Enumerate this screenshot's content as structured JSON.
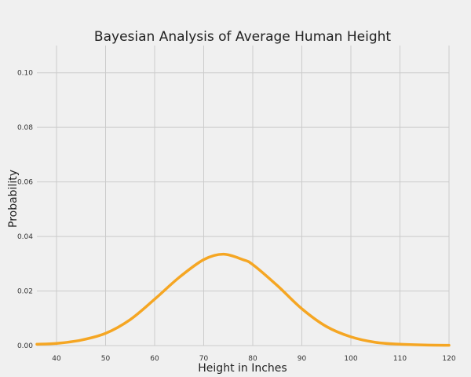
{
  "chart_data": {
    "type": "line",
    "title": "Bayesian Analysis of Average Human Height",
    "xlabel": "Height in Inches",
    "ylabel": "Probability",
    "xlim": [
      36,
      120
    ],
    "ylim": [
      0,
      0.11
    ],
    "xticks": [
      40,
      50,
      60,
      70,
      80,
      90,
      100,
      110,
      120
    ],
    "yticks": [
      0.0,
      0.02,
      0.04,
      0.06,
      0.08,
      0.1
    ],
    "ytick_labels": [
      "0.00",
      "0.02",
      "0.04",
      "0.06",
      "0.08",
      "0.10"
    ],
    "grid": true,
    "series": [
      {
        "color": "#f5a623",
        "points": [
          [
            36,
            0.0005
          ],
          [
            40,
            0.0008
          ],
          [
            45,
            0.002
          ],
          [
            50,
            0.0045
          ],
          [
            55,
            0.0095
          ],
          [
            60,
            0.017
          ],
          [
            65,
            0.025
          ],
          [
            70,
            0.0315
          ],
          [
            74,
            0.0335
          ],
          [
            78,
            0.0315
          ],
          [
            80,
            0.0297
          ],
          [
            85,
            0.022
          ],
          [
            90,
            0.0135
          ],
          [
            95,
            0.007
          ],
          [
            100,
            0.0032
          ],
          [
            105,
            0.0012
          ],
          [
            110,
            0.0005
          ],
          [
            115,
            0.0002
          ],
          [
            120,
            0.0001
          ]
        ]
      }
    ]
  },
  "colors": {
    "background": "#f0f0f0",
    "grid": "#cbcbcb",
    "line": "#f5a623"
  }
}
